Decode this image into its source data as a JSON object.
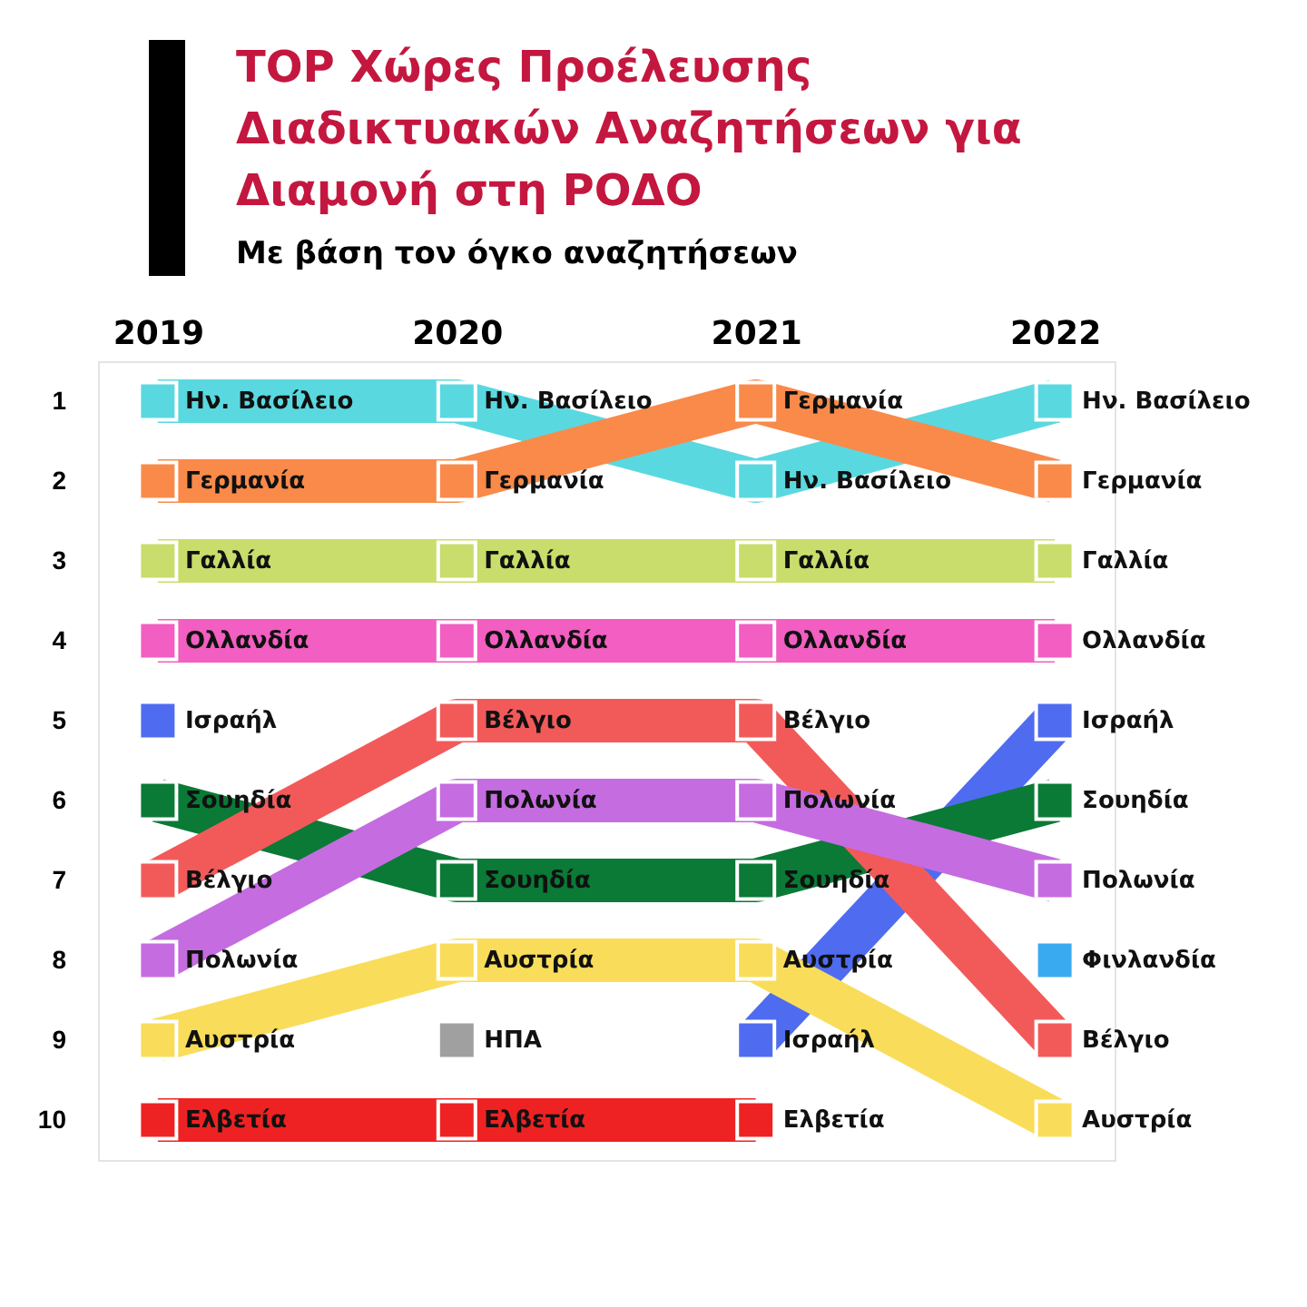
{
  "chart_data": {
    "type": "line",
    "title": "TOP Χώρες Προέλευσης Διαδικτυακών Αναζητήσεων για Διαμονή στη ΡΟΔΟ",
    "subtitle": "Με βάση τον όγκο αναζητήσεων",
    "categories": [
      "2019",
      "2020",
      "2021",
      "2022"
    ],
    "ylim": [
      10.5,
      0.5
    ],
    "yticks": [
      1,
      2,
      3,
      4,
      5,
      6,
      7,
      8,
      9,
      10
    ],
    "grid": false,
    "legend": false,
    "marker": "square",
    "line_style": "solid",
    "series": [
      {
        "name": "Ην. Βασίλειο",
        "color": "#5ad8e0",
        "values": [
          1,
          1,
          2,
          1
        ]
      },
      {
        "name": "Γερμανία",
        "color": "#f98a4a",
        "values": [
          2,
          2,
          1,
          2
        ]
      },
      {
        "name": "Γαλλία",
        "color": "#c8dd6b",
        "values": [
          3,
          3,
          3,
          3
        ]
      },
      {
        "name": "Ολλανδία",
        "color": "#f25ec1",
        "values": [
          4,
          4,
          4,
          4
        ]
      },
      {
        "name": "Ισραήλ",
        "color": "#4f6cf0",
        "values": [
          5,
          null,
          9,
          5
        ]
      },
      {
        "name": "Σουηδία",
        "color": "#0a7a36",
        "values": [
          6,
          7,
          7,
          6
        ]
      },
      {
        "name": "Βέλγιο",
        "color": "#f25a5a",
        "values": [
          7,
          5,
          5,
          9
        ]
      },
      {
        "name": "Πολωνία",
        "color": "#c56ce0",
        "values": [
          8,
          6,
          6,
          7
        ]
      },
      {
        "name": "Αυστρία",
        "color": "#f9dd5a",
        "values": [
          9,
          8,
          8,
          10
        ]
      },
      {
        "name": "ΗΠΑ",
        "color": "#a0a0a0",
        "values": [
          null,
          9,
          null,
          null
        ]
      },
      {
        "name": "Ελβετία",
        "color": "#ee2222",
        "values": [
          10,
          10,
          10,
          null
        ]
      },
      {
        "name": "Φινλανδία",
        "color": "#3aaaf0",
        "values": [
          null,
          null,
          null,
          8
        ]
      }
    ]
  }
}
